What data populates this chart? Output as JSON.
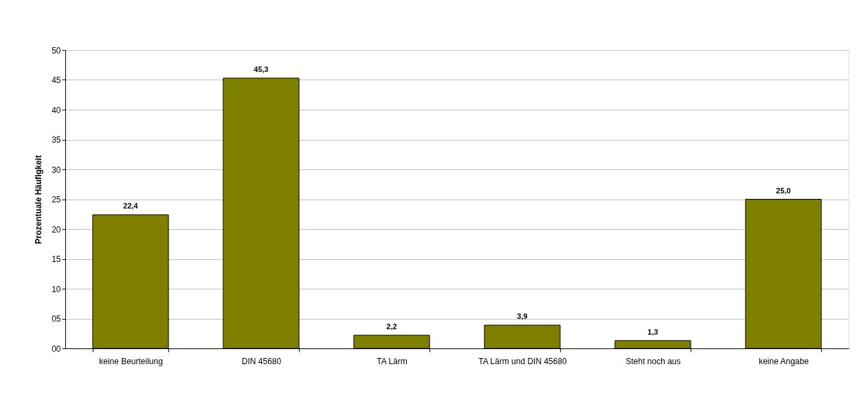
{
  "chart_data": {
    "type": "bar",
    "ylabel": "Prozentuale Häufigkeit",
    "categories": [
      "keine Beurteilung",
      "DIN 45680",
      "TA Lärm",
      "TA Lärm und DIN 45680",
      "Steht noch aus",
      "keine Angabe"
    ],
    "values": [
      22.4,
      45.3,
      2.2,
      3.9,
      1.3,
      25.0
    ],
    "value_labels": [
      "22,4",
      "45,3",
      "2,2",
      "3,9",
      "1,3",
      "25,0"
    ],
    "color": "#808000",
    "ylim": [
      0,
      50
    ],
    "yticks": [
      {
        "value": 0,
        "label": "00"
      },
      {
        "value": 5,
        "label": "05"
      },
      10,
      15,
      20,
      25,
      30,
      35,
      40,
      45,
      50
    ],
    "grid": "y"
  }
}
